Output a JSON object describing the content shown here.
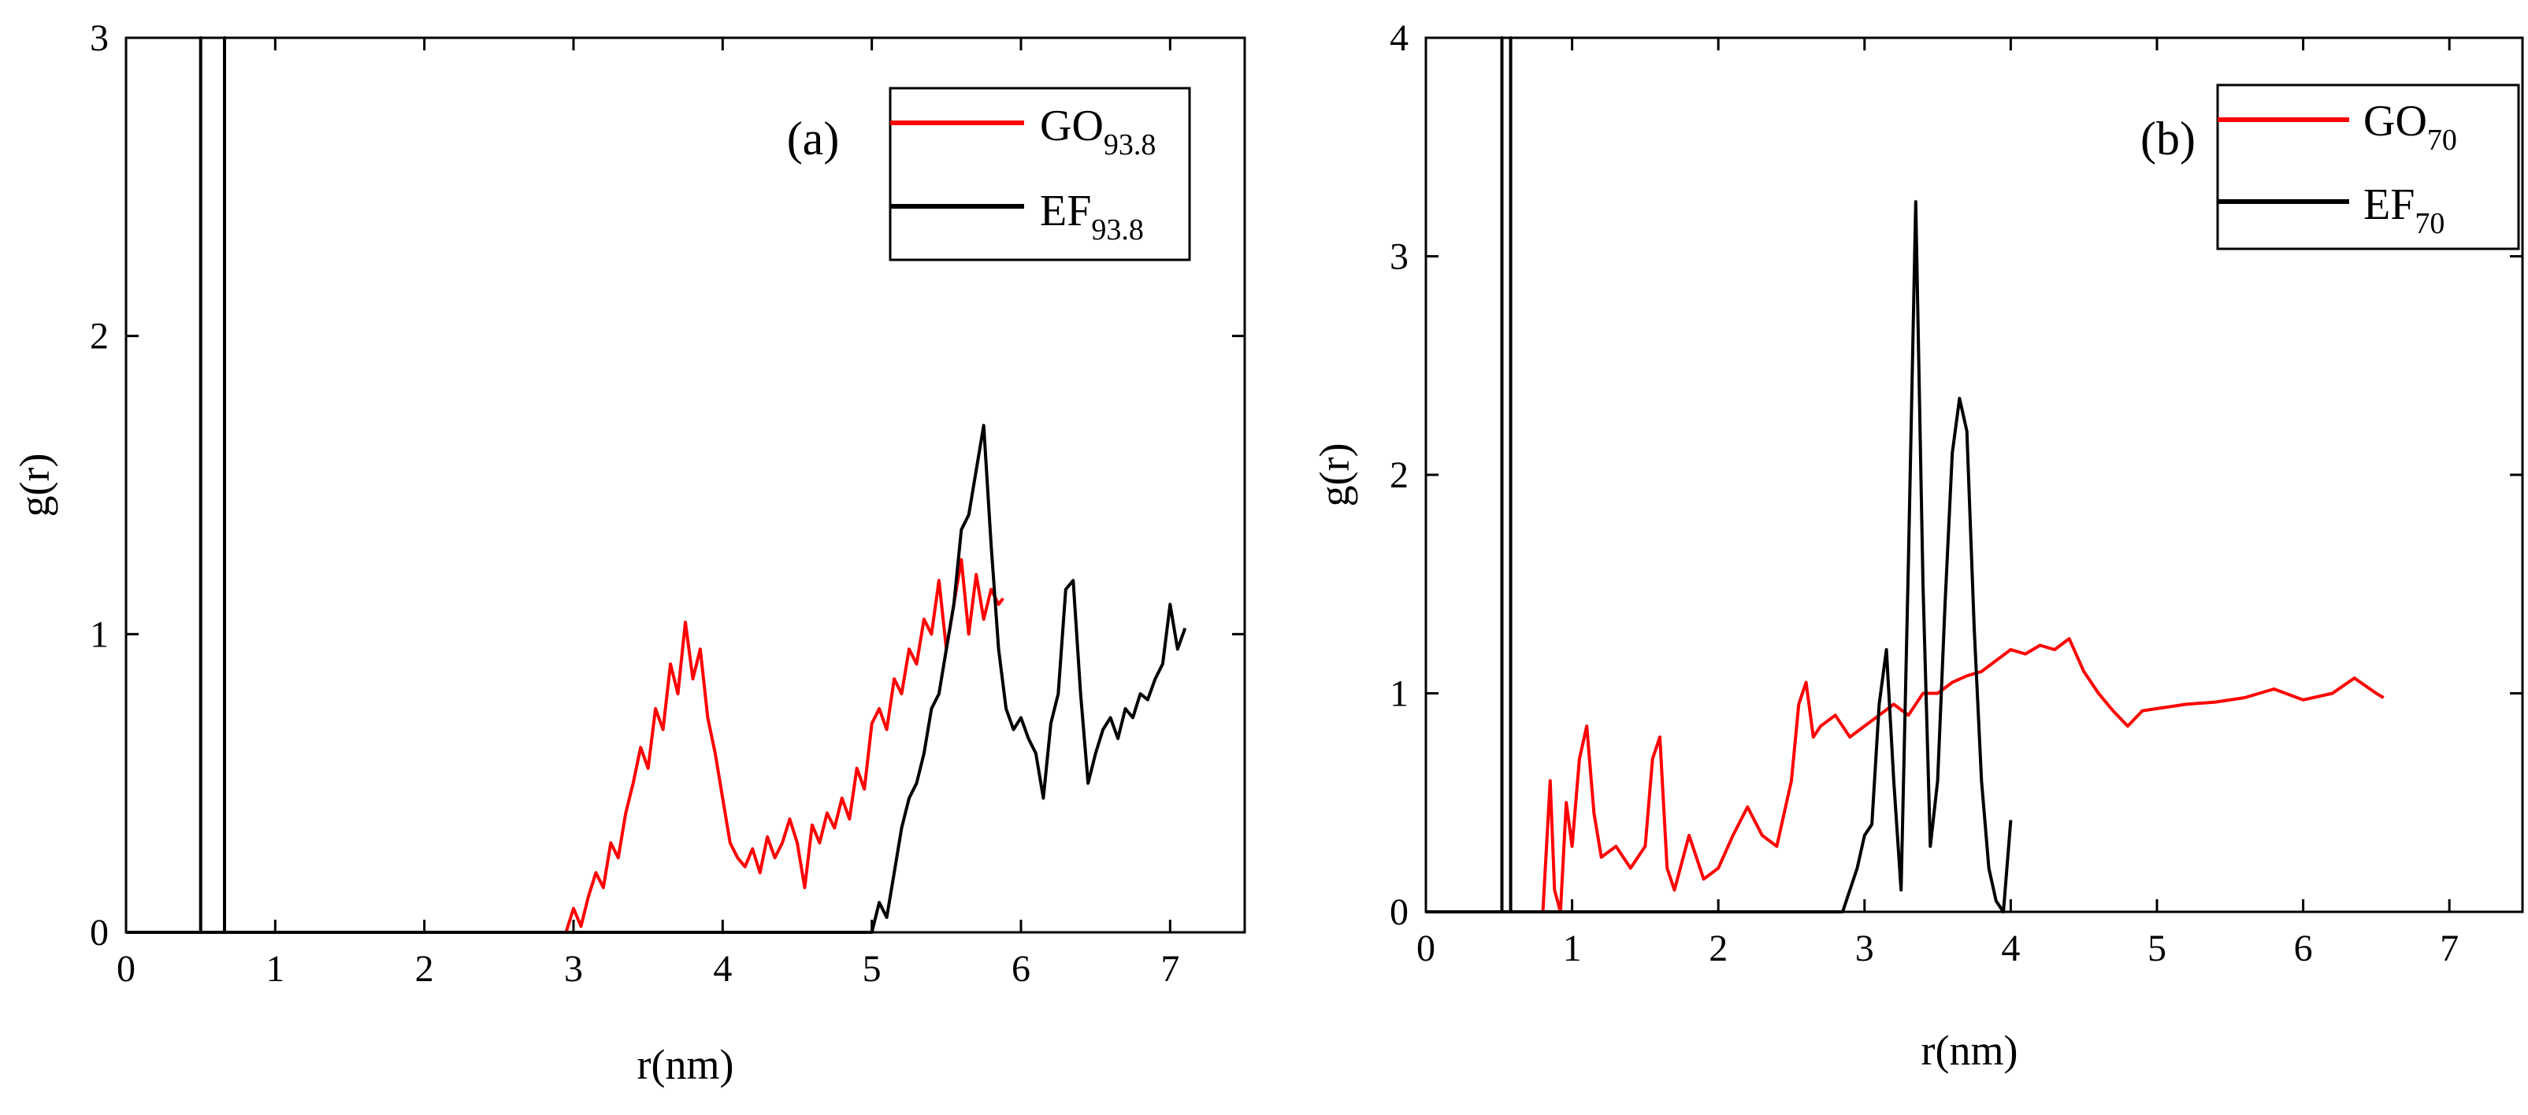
{
  "chart_data": [
    {
      "type": "line",
      "panel_label": "(a)",
      "xlabel": "r(nm)",
      "ylabel": "g(r)",
      "xlim": [
        0,
        7.5
      ],
      "ylim": [
        0,
        3
      ],
      "xticks": [
        0,
        1,
        2,
        3,
        4,
        5,
        6,
        7
      ],
      "yticks": [
        0,
        1,
        2,
        3
      ],
      "xtick_labels": [
        "0",
        "1",
        "2",
        "3",
        "4",
        "5",
        "6",
        "7"
      ],
      "ytick_labels": [
        "0",
        "1",
        "2",
        "3"
      ],
      "legend_position": "top-right",
      "series": [
        {
          "name": "GO",
          "subscript": "93.8",
          "color": "#ff0000",
          "x": [
            0.0,
            0.58,
            0.62,
            2.95,
            3.0,
            3.05,
            3.1,
            3.15,
            3.2,
            3.25,
            3.3,
            3.35,
            3.4,
            3.45,
            3.5,
            3.55,
            3.6,
            3.65,
            3.7,
            3.75,
            3.8,
            3.85,
            3.9,
            3.95,
            4.0,
            4.05,
            4.1,
            4.15,
            4.2,
            4.25,
            4.3,
            4.35,
            4.4,
            4.45,
            4.5,
            4.55,
            4.6,
            4.65,
            4.7,
            4.75,
            4.8,
            4.85,
            4.9,
            4.95,
            5.0,
            5.05,
            5.1,
            5.15,
            5.2,
            5.25,
            5.3,
            5.35,
            5.4,
            5.45,
            5.5,
            5.55,
            5.6,
            5.65,
            5.7,
            5.75,
            5.8,
            5.85,
            5.88
          ],
          "y": [
            0.0,
            0.0,
            0.0,
            0.0,
            0.08,
            0.02,
            0.12,
            0.2,
            0.15,
            0.3,
            0.25,
            0.4,
            0.5,
            0.62,
            0.55,
            0.75,
            0.68,
            0.9,
            0.8,
            1.04,
            0.85,
            0.95,
            0.72,
            0.6,
            0.45,
            0.3,
            0.25,
            0.22,
            0.28,
            0.2,
            0.32,
            0.25,
            0.3,
            0.38,
            0.3,
            0.15,
            0.36,
            0.3,
            0.4,
            0.35,
            0.45,
            0.38,
            0.55,
            0.48,
            0.7,
            0.75,
            0.68,
            0.85,
            0.8,
            0.95,
            0.9,
            1.05,
            1.0,
            1.18,
            0.95,
            1.1,
            1.25,
            1.0,
            1.2,
            1.05,
            1.15,
            1.1,
            1.12
          ]
        },
        {
          "name": "EF",
          "subscript": "93.8",
          "color": "#000000",
          "x": [
            0.0,
            0.5,
            0.5,
            0.5,
            0.5,
            0.66,
            0.66,
            0.66,
            0.66,
            4.95,
            5.0,
            5.05,
            5.1,
            5.15,
            5.2,
            5.25,
            5.3,
            5.35,
            5.4,
            5.45,
            5.5,
            5.55,
            5.6,
            5.65,
            5.7,
            5.75,
            5.8,
            5.85,
            5.9,
            5.95,
            6.0,
            6.05,
            6.1,
            6.15,
            6.2,
            6.25,
            6.3,
            6.35,
            6.4,
            6.45,
            6.5,
            6.55,
            6.6,
            6.65,
            6.7,
            6.75,
            6.8,
            6.85,
            6.9,
            6.95,
            7.0,
            7.05,
            7.1
          ],
          "y": [
            0.0,
            0.0,
            3.0,
            3.0,
            0.0,
            0.0,
            3.0,
            3.0,
            0.0,
            0.0,
            0.0,
            0.1,
            0.05,
            0.2,
            0.35,
            0.45,
            0.5,
            0.6,
            0.75,
            0.8,
            0.95,
            1.1,
            1.35,
            1.4,
            1.55,
            1.7,
            1.3,
            0.95,
            0.75,
            0.68,
            0.72,
            0.65,
            0.6,
            0.45,
            0.7,
            0.8,
            1.15,
            1.18,
            0.8,
            0.5,
            0.6,
            0.68,
            0.72,
            0.65,
            0.75,
            0.72,
            0.8,
            0.78,
            0.85,
            0.9,
            1.1,
            0.95,
            1.02
          ]
        }
      ]
    },
    {
      "type": "line",
      "panel_label": "(b)",
      "xlabel": "r(nm)",
      "ylabel": "g(r)",
      "xlim": [
        0,
        7.5
      ],
      "ylim": [
        0,
        4
      ],
      "xticks": [
        0,
        1,
        2,
        3,
        4,
        5,
        6,
        7
      ],
      "yticks": [
        0,
        1,
        2,
        3,
        4
      ],
      "xtick_labels": [
        "0",
        "1",
        "2",
        "3",
        "4",
        "5",
        "6",
        "7"
      ],
      "ytick_labels": [
        "0",
        "1",
        "2",
        "3",
        "4"
      ],
      "legend_position": "top-right",
      "series": [
        {
          "name": "GO",
          "subscript": "70",
          "color": "#ff0000",
          "x": [
            0.0,
            0.8,
            0.85,
            0.88,
            0.92,
            0.96,
            1.0,
            1.05,
            1.1,
            1.15,
            1.2,
            1.3,
            1.4,
            1.5,
            1.55,
            1.6,
            1.65,
            1.7,
            1.8,
            1.9,
            2.0,
            2.1,
            2.2,
            2.3,
            2.4,
            2.5,
            2.55,
            2.6,
            2.65,
            2.7,
            2.8,
            2.9,
            3.0,
            3.1,
            3.2,
            3.3,
            3.4,
            3.5,
            3.6,
            3.7,
            3.8,
            3.9,
            4.0,
            4.1,
            4.2,
            4.3,
            4.4,
            4.5,
            4.6,
            4.7,
            4.8,
            4.9,
            5.0,
            5.2,
            5.4,
            5.6,
            5.8,
            6.0,
            6.2,
            6.35,
            6.5,
            6.55
          ],
          "y": [
            0.0,
            0.0,
            0.6,
            0.1,
            0.0,
            0.5,
            0.3,
            0.7,
            0.85,
            0.45,
            0.25,
            0.3,
            0.2,
            0.3,
            0.7,
            0.8,
            0.2,
            0.1,
            0.35,
            0.15,
            0.2,
            0.35,
            0.48,
            0.35,
            0.3,
            0.6,
            0.95,
            1.05,
            0.8,
            0.85,
            0.9,
            0.8,
            0.85,
            0.9,
            0.95,
            0.9,
            1.0,
            1.0,
            1.05,
            1.08,
            1.1,
            1.15,
            1.2,
            1.18,
            1.22,
            1.2,
            1.25,
            1.1,
            1.0,
            0.92,
            0.85,
            0.92,
            0.93,
            0.95,
            0.96,
            0.98,
            1.02,
            0.97,
            1.0,
            1.07,
            1.0,
            0.98
          ]
        },
        {
          "name": "EF",
          "subscript": "70",
          "color": "#000000",
          "x": [
            0.0,
            0.52,
            0.52,
            0.52,
            0.52,
            0.58,
            0.58,
            0.58,
            0.58,
            2.85,
            2.95,
            3.0,
            3.05,
            3.1,
            3.15,
            3.2,
            3.25,
            3.3,
            3.35,
            3.4,
            3.45,
            3.5,
            3.55,
            3.6,
            3.65,
            3.7,
            3.75,
            3.8,
            3.85,
            3.9,
            3.95,
            4.0
          ],
          "y": [
            0.0,
            0.0,
            4.0,
            4.0,
            0.0,
            0.0,
            4.0,
            4.0,
            0.0,
            0.0,
            0.2,
            0.35,
            0.4,
            0.95,
            1.2,
            0.6,
            0.1,
            1.6,
            3.25,
            1.5,
            0.3,
            0.6,
            1.4,
            2.1,
            2.35,
            2.2,
            1.3,
            0.6,
            0.2,
            0.05,
            0.0,
            0.42
          ]
        }
      ]
    }
  ]
}
